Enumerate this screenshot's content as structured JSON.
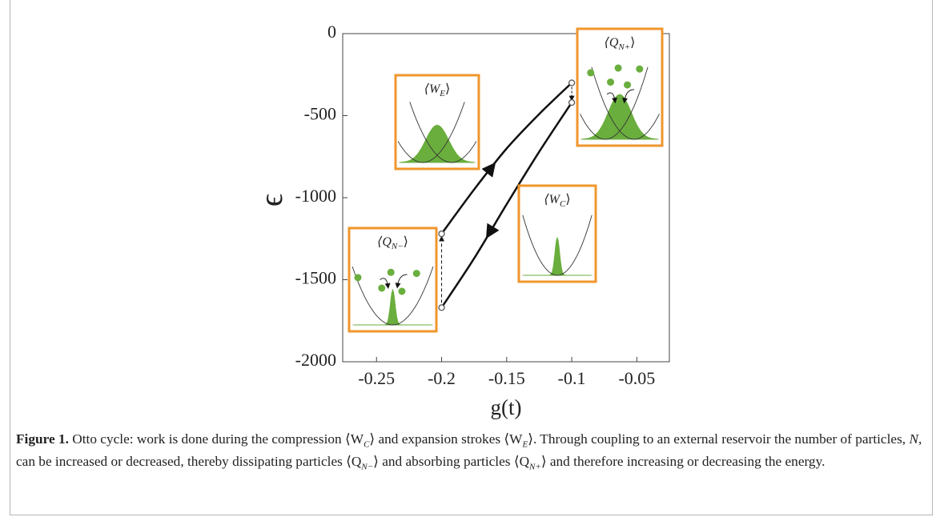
{
  "chart_data": {
    "type": "line",
    "x_label": "g(t)",
    "y_label": "ϵ",
    "xlim": [
      -0.276,
      -0.025
    ],
    "ylim": [
      -2000,
      0
    ],
    "xticks": [
      -0.25,
      -0.2,
      -0.15,
      -0.1,
      -0.05
    ],
    "yticks": [
      0,
      -500,
      -1000,
      -1500,
      -2000
    ],
    "x": [
      -0.2,
      -0.175,
      -0.15,
      -0.125,
      -0.1
    ],
    "series": [
      {
        "color": "#111111",
        "values": [
          -1220,
          -950,
          -700,
          -490,
          -300
        ]
      },
      {
        "color": "#111111",
        "values": [
          -1670,
          -1370,
          -1040,
          -720,
          -420
        ]
      }
    ]
  },
  "insets": [
    {
      "parts": [
        "⟨W",
        "E",
        "⟩"
      ]
    },
    {
      "parts": [
        "⟨Q",
        "N+",
        "⟩"
      ]
    },
    {
      "parts": [
        "⟨W",
        "C",
        "⟩"
      ]
    },
    {
      "parts": [
        "⟨Q",
        "N−",
        "⟩"
      ]
    }
  ],
  "caption": {
    "label": "Figure 1.",
    "parts": [
      " Otto cycle: work is done during the compression ⟨W",
      "C",
      "⟩ and expansion strokes ⟨W",
      "E",
      "⟩. Through coupling to an external reservoir the number of particles, ",
      "N",
      ", can be increased or decreased, thereby dissipating particles ⟨Q",
      "N−",
      "⟩ and absorbing particles ⟨Q",
      "N+",
      "⟩ and therefore increasing or decreasing the energy."
    ]
  }
}
